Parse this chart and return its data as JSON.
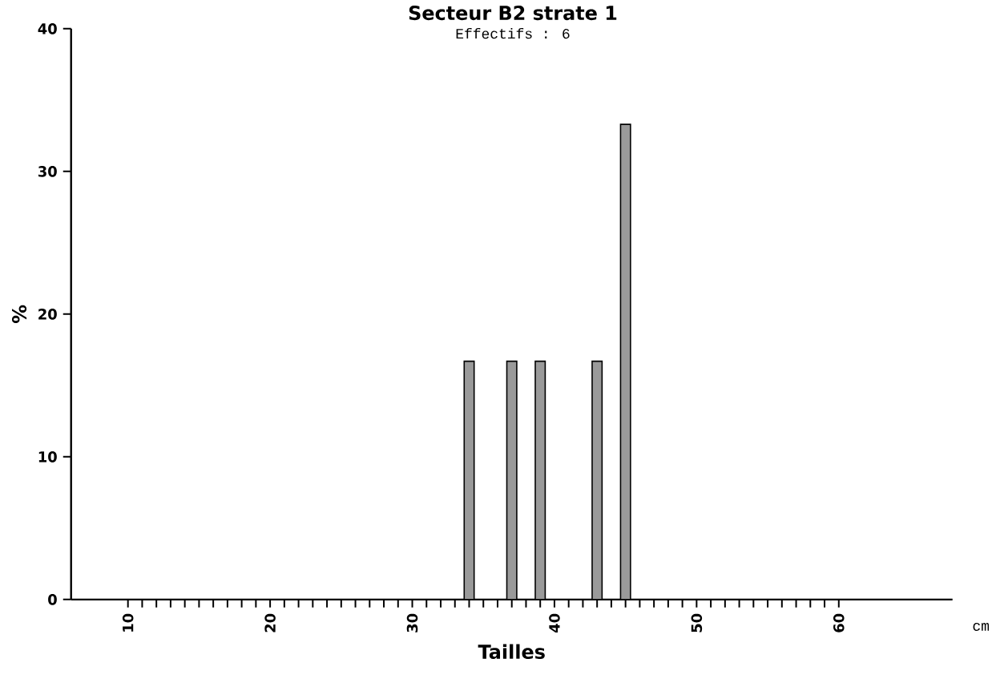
{
  "chart_data": {
    "type": "bar",
    "title": "Secteur B2 strate 1",
    "subtitle": "Effectifs :   6",
    "xlabel": "Tailles",
    "ylabel": "%",
    "annotations": [
      "cm"
    ],
    "x": [
      34,
      37,
      39,
      43,
      45
    ],
    "values": [
      16.7,
      16.7,
      16.7,
      16.7,
      33.3
    ],
    "color": "#9a9a9a",
    "xlim": [
      6,
      68
    ],
    "xticks": [
      10,
      20,
      30,
      40,
      50,
      60
    ],
    "ylim": [
      0,
      40
    ],
    "yticks": [
      0,
      10,
      20,
      30,
      40
    ],
    "grid": false
  }
}
